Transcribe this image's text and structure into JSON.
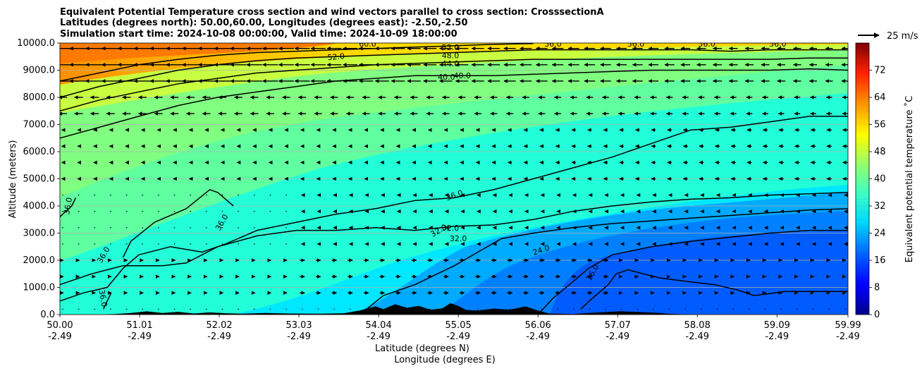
{
  "chart_data": {
    "type": "contourf",
    "title_lines": [
      "Equivalent Potential Temperature cross section and wind vectors parallel to cross section: CrosssectionA",
      "Latitudes (degrees north): 50.00,60.00, Longitudes (degrees east): -2.50,-2.50",
      "Simulation start time: 2024-10-08 00:00:00, Valid time: 2024-10-09 18:00:00"
    ],
    "ylabel": "Altitude (meters)",
    "xlabel_lat": "Latitude (degrees N)",
    "xlabel_lon": "Longitude (degrees E)",
    "ylim": [
      0,
      10000
    ],
    "xlim": [
      50.0,
      59.99
    ],
    "yticks": [
      "0.0",
      "1000.0",
      "2000.0",
      "3000.0",
      "4000.0",
      "5000.0",
      "6000.0",
      "7000.0",
      "8000.0",
      "9000.0",
      "10000.0"
    ],
    "xticks": [
      {
        "lat": "50.00",
        "lon": "-2.49"
      },
      {
        "lat": "51.01",
        "lon": "-2.49"
      },
      {
        "lat": "52.02",
        "lon": "-2.49"
      },
      {
        "lat": "53.03",
        "lon": "-2.49"
      },
      {
        "lat": "54.04",
        "lon": "-2.49"
      },
      {
        "lat": "55.05",
        "lon": "-2.49"
      },
      {
        "lat": "56.06",
        "lon": "-2.49"
      },
      {
        "lat": "57.07",
        "lon": "-2.49"
      },
      {
        "lat": "58.08",
        "lon": "-2.49"
      },
      {
        "lat": "59.09",
        "lon": "-2.49"
      },
      {
        "lat": "59.99",
        "lon": "-2.49"
      }
    ],
    "colorbar": {
      "label": "Equivalent potential temperature ˚C",
      "min": 0,
      "max": 80,
      "ticks": [
        "0",
        "8",
        "16",
        "24",
        "32",
        "40",
        "48",
        "56",
        "64",
        "72"
      ]
    },
    "quiver_key": "25 m/s",
    "contours": [
      {
        "level": 16,
        "label": "16.0",
        "points": [
          [
            56.6,
            200
          ],
          [
            56.75,
            600
          ],
          [
            56.95,
            1100
          ],
          [
            57.05,
            1500
          ],
          [
            57.2,
            1650
          ],
          [
            57.4,
            1500
          ],
          [
            57.6,
            1350
          ],
          [
            58.0,
            1200
          ],
          [
            58.3,
            1100
          ],
          [
            58.6,
            900
          ],
          [
            58.8,
            700
          ],
          [
            59.2,
            850
          ],
          [
            59.99,
            850
          ]
        ]
      },
      {
        "level": 24,
        "label": "24.0",
        "points": [
          [
            56.06,
            0
          ],
          [
            56.25,
            600
          ],
          [
            56.5,
            1200
          ],
          [
            56.7,
            1700
          ],
          [
            57.0,
            2200
          ],
          [
            57.5,
            2500
          ],
          [
            58.0,
            2700
          ],
          [
            58.5,
            2850
          ],
          [
            59.0,
            3000
          ],
          [
            59.5,
            3100
          ],
          [
            59.99,
            3100
          ]
        ]
      },
      {
        "level": 32,
        "label": "32.0",
        "points": [
          [
            53.8,
            0
          ],
          [
            54.1,
            700
          ],
          [
            54.5,
            1100
          ],
          [
            55.0,
            1800
          ],
          [
            55.3,
            2300
          ],
          [
            55.6,
            2800
          ],
          [
            56.0,
            3000
          ],
          [
            56.5,
            3200
          ],
          [
            57.0,
            3350
          ],
          [
            57.5,
            3450
          ],
          [
            58.0,
            3550
          ],
          [
            58.5,
            3650
          ],
          [
            59.0,
            3750
          ],
          [
            59.5,
            3850
          ],
          [
            59.99,
            3900
          ]
        ]
      },
      {
        "level": 32,
        "label": "32.0",
        "points": [
          [
            50.0,
            1100
          ],
          [
            50.4,
            1500
          ],
          [
            50.8,
            1800
          ],
          [
            51.3,
            1800
          ],
          [
            51.6,
            1900
          ],
          [
            52.0,
            2500
          ],
          [
            52.5,
            2900
          ],
          [
            53.0,
            3100
          ],
          [
            53.5,
            3100
          ],
          [
            54.0,
            3200
          ],
          [
            54.5,
            3100
          ],
          [
            55.0,
            3250
          ],
          [
            55.5,
            3300
          ],
          [
            56.0,
            3500
          ],
          [
            56.5,
            3800
          ],
          [
            57.0,
            4000
          ],
          [
            57.5,
            4150
          ],
          [
            58.0,
            4250
          ],
          [
            58.5,
            4300
          ],
          [
            59.0,
            4400
          ],
          [
            59.5,
            4450
          ],
          [
            59.99,
            4500
          ]
        ]
      },
      {
        "level": 36,
        "label": "36.0",
        "points": [
          [
            50.0,
            500
          ],
          [
            50.3,
            800
          ],
          [
            50.6,
            1000
          ],
          [
            50.8,
            1700
          ],
          [
            51.0,
            2200
          ],
          [
            51.4,
            2500
          ],
          [
            51.8,
            2300
          ],
          [
            52.1,
            2600
          ],
          [
            52.5,
            3100
          ],
          [
            53.0,
            3400
          ],
          [
            53.5,
            3700
          ],
          [
            54.0,
            3900
          ],
          [
            54.5,
            4200
          ],
          [
            55.0,
            4300
          ],
          [
            55.5,
            4600
          ],
          [
            56.0,
            5000
          ],
          [
            56.5,
            5400
          ],
          [
            57.0,
            5800
          ],
          [
            57.5,
            6300
          ],
          [
            58.0,
            6800
          ],
          [
            58.5,
            6900
          ],
          [
            59.0,
            7100
          ],
          [
            59.5,
            7300
          ],
          [
            59.99,
            7300
          ]
        ]
      },
      {
        "level": 36,
        "label": "36.0",
        "points": [
          [
            50.55,
            200
          ],
          [
            50.6,
            500
          ],
          [
            50.65,
            800
          ]
        ]
      },
      {
        "level": 36,
        "label": "36.0",
        "points": [
          [
            50.0,
            3600
          ],
          [
            50.15,
            4000
          ],
          [
            50.2,
            4300
          ]
        ]
      },
      {
        "level": 36,
        "label": "36.0",
        "points": [
          [
            50.8,
            2100
          ],
          [
            50.9,
            2700
          ],
          [
            51.2,
            3400
          ],
          [
            51.6,
            3900
          ],
          [
            51.9,
            4600
          ],
          [
            52.0,
            4500
          ],
          [
            52.2,
            4000
          ]
        ]
      },
      {
        "level": 40,
        "label": "40.0",
        "points": [
          [
            50.0,
            6500
          ],
          [
            50.5,
            6900
          ],
          [
            51.0,
            7300
          ],
          [
            51.5,
            7700
          ],
          [
            52.0,
            8000
          ],
          [
            52.5,
            8200
          ],
          [
            53.0,
            8400
          ],
          [
            53.5,
            8600
          ],
          [
            54.0,
            8700
          ],
          [
            54.5,
            8800
          ],
          [
            55.0,
            8800
          ],
          [
            55.5,
            8800
          ],
          [
            56.0,
            8850
          ],
          [
            56.5,
            8900
          ],
          [
            57.0,
            8950
          ],
          [
            57.5,
            9000
          ],
          [
            58.0,
            9000
          ],
          [
            58.5,
            9000
          ],
          [
            59.0,
            9000
          ],
          [
            59.5,
            9050
          ],
          [
            59.99,
            9000
          ]
        ]
      },
      {
        "level": 44,
        "label": "44.0",
        "points": [
          [
            50.0,
            7500
          ],
          [
            50.5,
            7900
          ],
          [
            51.0,
            8200
          ],
          [
            51.5,
            8500
          ],
          [
            52.0,
            8700
          ],
          [
            52.5,
            8900
          ],
          [
            53.0,
            9000
          ],
          [
            53.5,
            9100
          ],
          [
            54.0,
            9200
          ],
          [
            54.5,
            9250
          ],
          [
            55.0,
            9300
          ],
          [
            55.5,
            9350
          ],
          [
            56.0,
            9400
          ],
          [
            56.5,
            9400
          ],
          [
            57.0,
            9400
          ],
          [
            57.5,
            9400
          ],
          [
            58.0,
            9400
          ],
          [
            58.5,
            9400
          ],
          [
            59.0,
            9400
          ],
          [
            59.5,
            9450
          ],
          [
            59.99,
            9450
          ]
        ]
      },
      {
        "level": 48,
        "label": "48.0",
        "points": [
          [
            50.0,
            8000
          ],
          [
            50.5,
            8400
          ],
          [
            51.0,
            8700
          ],
          [
            51.5,
            9000
          ],
          [
            52.0,
            9200
          ],
          [
            52.5,
            9350
          ],
          [
            53.0,
            9450
          ],
          [
            53.5,
            9500
          ],
          [
            54.0,
            9550
          ],
          [
            54.5,
            9600
          ],
          [
            55.0,
            9650
          ],
          [
            55.5,
            9700
          ],
          [
            56.0,
            9750
          ],
          [
            56.5,
            9750
          ],
          [
            57.0,
            9750
          ],
          [
            57.5,
            9750
          ],
          [
            58.0,
            9750
          ],
          [
            58.5,
            9700
          ],
          [
            59.0,
            9750
          ],
          [
            59.5,
            9750
          ],
          [
            59.99,
            9750
          ]
        ]
      },
      {
        "level": 52,
        "label": "52.0",
        "points": [
          [
            50.0,
            8600
          ],
          [
            50.5,
            8900
          ],
          [
            51.0,
            9200
          ],
          [
            51.5,
            9400
          ],
          [
            52.0,
            9550
          ],
          [
            52.5,
            9650
          ],
          [
            53.0,
            9700
          ],
          [
            53.5,
            9750
          ],
          [
            54.0,
            9800
          ],
          [
            54.5,
            9850
          ],
          [
            55.0,
            9900
          ],
          [
            55.5,
            9950
          ],
          [
            56.0,
            9980
          ]
        ]
      }
    ],
    "contour_labels": [
      {
        "text": "16.0",
        "x": 56.75,
        "y": 1550,
        "angle": -60
      },
      {
        "text": "24.0",
        "x": 56.1,
        "y": 2380,
        "angle": -18
      },
      {
        "text": "32.0",
        "x": 54.95,
        "y": 3200,
        "angle": 0
      },
      {
        "text": "32.0",
        "x": 55.05,
        "y": 2800,
        "angle": 0
      },
      {
        "text": "32.0",
        "x": 54.8,
        "y": 3100,
        "angle": -30
      },
      {
        "text": "36.0",
        "x": 55.0,
        "y": 4400,
        "angle": -20
      },
      {
        "text": "36.0",
        "x": 50.1,
        "y": 4000,
        "angle": -80
      },
      {
        "text": "36.0",
        "x": 50.55,
        "y": 600,
        "angle": 80
      },
      {
        "text": "36.0",
        "x": 50.55,
        "y": 2200,
        "angle": -60
      },
      {
        "text": "36.0",
        "x": 52.05,
        "y": 3400,
        "angle": -60
      },
      {
        "text": "40.0",
        "x": 54.9,
        "y": 8750,
        "angle": 0
      },
      {
        "text": "40.0",
        "x": 55.1,
        "y": 8800,
        "angle": 0
      },
      {
        "text": "44.0",
        "x": 54.95,
        "y": 9250,
        "angle": 0
      },
      {
        "text": "48.0",
        "x": 54.95,
        "y": 9550,
        "angle": 0
      },
      {
        "text": "52.0",
        "x": 54.95,
        "y": 9850,
        "angle": 0
      },
      {
        "text": "52.0",
        "x": 53.5,
        "y": 9500,
        "angle": -5
      },
      {
        "text": "60.0",
        "x": 53.9,
        "y": 9980,
        "angle": 0
      },
      {
        "text": "56.0",
        "x": 56.25,
        "y": 9980,
        "angle": 0
      },
      {
        "text": "56.0",
        "x": 57.3,
        "y": 9980,
        "angle": 0
      },
      {
        "text": "56.0",
        "x": 58.2,
        "y": 9980,
        "angle": 0
      },
      {
        "text": "56.0",
        "x": 59.1,
        "y": 9980,
        "angle": 0
      }
    ],
    "terrain": [
      [
        50.0,
        0
      ],
      [
        50.5,
        0
      ],
      [
        50.7,
        20
      ],
      [
        50.9,
        60
      ],
      [
        51.1,
        120
      ],
      [
        51.3,
        60
      ],
      [
        51.5,
        100
      ],
      [
        51.7,
        40
      ],
      [
        51.9,
        80
      ],
      [
        52.1,
        50
      ],
      [
        52.3,
        30
      ],
      [
        52.6,
        60
      ],
      [
        52.9,
        40
      ],
      [
        53.3,
        30
      ],
      [
        53.6,
        50
      ],
      [
        53.8,
        150
      ],
      [
        54.0,
        300
      ],
      [
        54.1,
        200
      ],
      [
        54.25,
        380
      ],
      [
        54.4,
        250
      ],
      [
        54.55,
        320
      ],
      [
        54.7,
        180
      ],
      [
        54.85,
        230
      ],
      [
        54.95,
        420
      ],
      [
        55.05,
        320
      ],
      [
        55.15,
        170
      ],
      [
        55.3,
        150
      ],
      [
        55.5,
        220
      ],
      [
        55.7,
        180
      ],
      [
        55.9,
        300
      ],
      [
        56.06,
        150
      ],
      [
        56.2,
        40
      ],
      [
        56.5,
        20
      ],
      [
        56.7,
        60
      ],
      [
        56.9,
        90
      ],
      [
        57.1,
        120
      ],
      [
        57.3,
        100
      ],
      [
        57.6,
        60
      ],
      [
        57.7,
        30
      ],
      [
        58.0,
        0
      ],
      [
        59.99,
        0
      ]
    ]
  }
}
